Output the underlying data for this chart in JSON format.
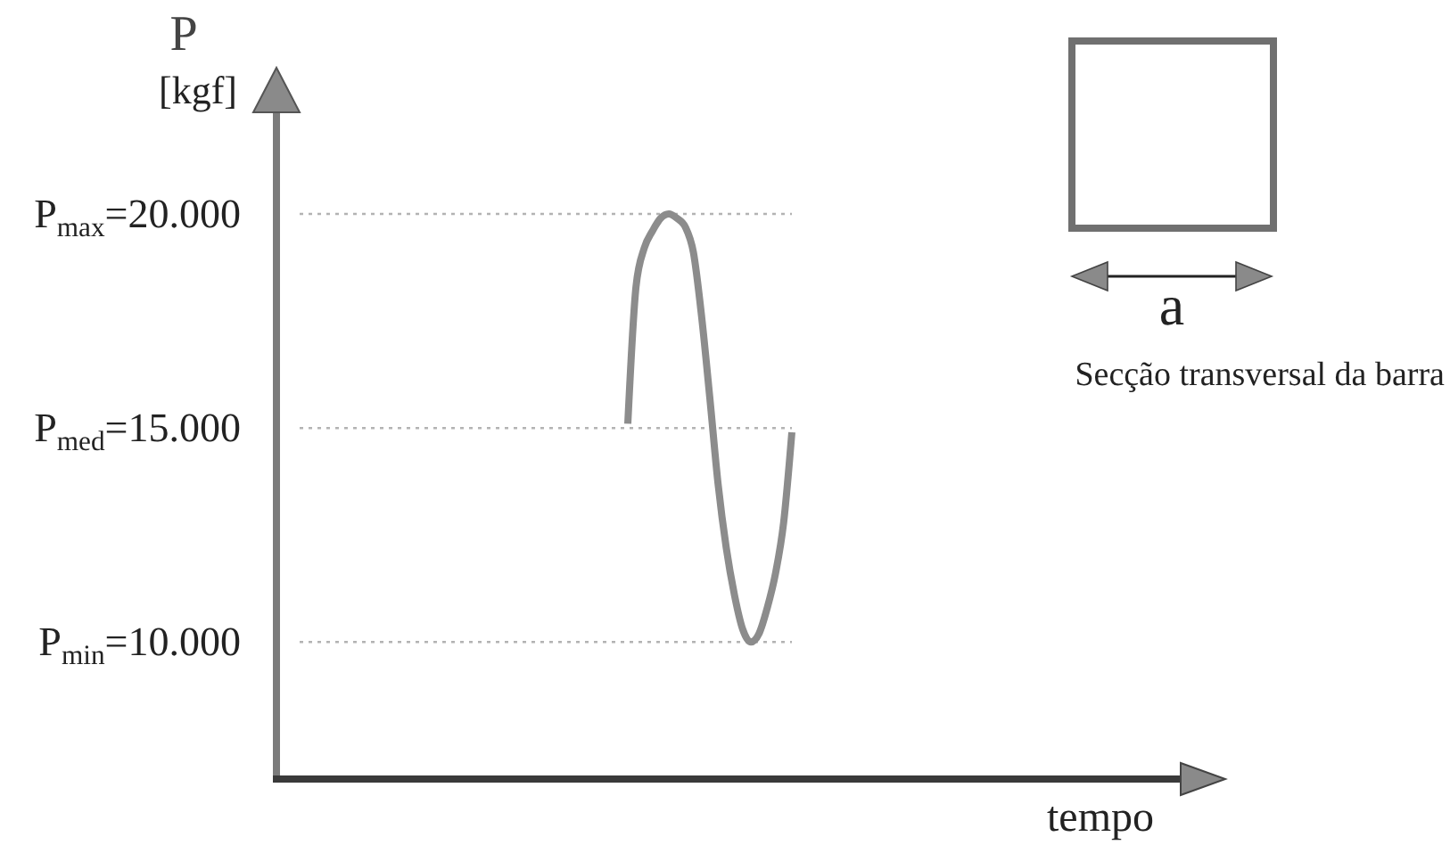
{
  "chart_data": {
    "type": "line",
    "ylabel": "P [kgf]",
    "categories": [
      null,
      null,
      null,
      null,
      null,
      null,
      null,
      null,
      null,
      null,
      null,
      null,
      null,
      null,
      null,
      null,
      null,
      null,
      null,
      null,
      null,
      null,
      null,
      null,
      null,
      null,
      null,
      null,
      null,
      null,
      null,
      null,
      null,
      null,
      null,
      null,
      null,
      null,
      null,
      null,
      null,
      null,
      null,
      null,
      null,
      null,
      null,
      null,
      null,
      null,
      null,
      null,
      null,
      null,
      null,
      null,
      null,
      null,
      null,
      null,
      null
    ],
    "values": [
      null,
      null,
      null,
      null,
      null,
      null,
      null,
      null,
      null,
      null,
      null,
      null,
      null,
      null,
      null,
      null,
      null,
      null,
      null,
      null,
      null,
      null,
      null,
      null,
      null,
      null,
      null,
      null,
      null,
      null,
      null,
      null,
      null,
      null,
      null,
      null,
      null,
      null,
      null,
      null,
      15100,
      18300,
      19200,
      19600,
      19900,
      20000,
      19900,
      19700,
      19100,
      17600,
      15700,
      13700,
      12200,
      11100,
      10300,
      10000,
      10200,
      10800,
      11600,
      12800,
      14900
    ],
    "color": "#8c8c8c",
    "ylim": [
      6800,
      22500
    ],
    "yticks": [
      {
        "value": 10000,
        "label": "P$_{min}$=10.000"
      },
      {
        "value": 15000,
        "label": "P$_{med}$=15.000"
      },
      {
        "value": 20000,
        "label": "P$_{max}$=20.000"
      }
    ],
    "tick_labels": "y",
    "ref_lines": [
      {
        "axis": "y",
        "value": 20000,
        "color": "#b3b3b3",
        "line_style": "dotted"
      },
      {
        "axis": "y",
        "value": 15000,
        "color": "#b3b3b3",
        "line_style": "dotted"
      },
      {
        "axis": "y",
        "value": 10000,
        "color": "#b3b3b3",
        "line_style": "dotted"
      }
    ],
    "annotations": [
      "a",
      "Secção transversal da barra",
      "tempo"
    ]
  }
}
